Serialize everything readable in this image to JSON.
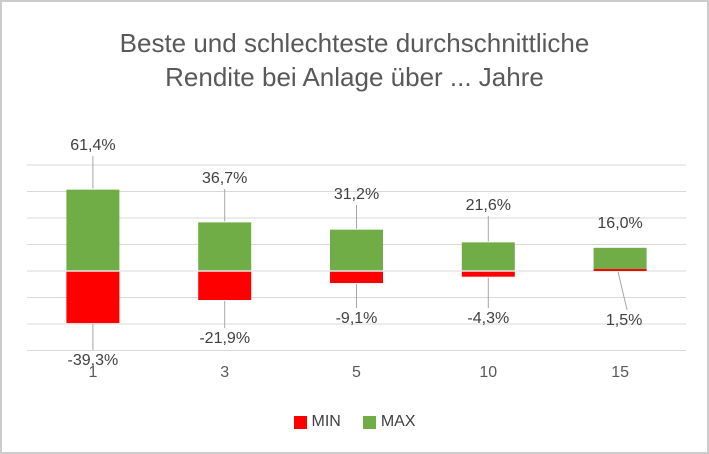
{
  "title": {
    "line1": "Beste und schlechteste durchschnittliche",
    "line2": "Rendite bei Anlage über ... Jahre"
  },
  "legend": {
    "items": [
      {
        "label": "MIN",
        "color": "#ff0000"
      },
      {
        "label": "MAX",
        "color": "#70ad47"
      }
    ]
  },
  "colors": {
    "min_red": "#ff0000",
    "max_green": "#70ad47",
    "gridline": "#d9d9d9",
    "leader": "#a6a6a6",
    "data_label": "#404040",
    "axis_text": "#595959",
    "title_text": "#595959",
    "border": "#cccccc",
    "background": "#ffffff"
  },
  "chart_data": {
    "type": "bar",
    "stacked": true,
    "title": "Beste und schlechteste durchschnittliche Rendite bei Anlage über ... Jahre",
    "categories": [
      "1",
      "3",
      "5",
      "10",
      "15"
    ],
    "series": [
      {
        "name": "MIN",
        "color": "#ff0000",
        "values": [
          -39.3,
          -21.9,
          -9.1,
          -4.3,
          1.5
        ],
        "labels": [
          "-39,3%",
          "-21,9%",
          "-9,1%",
          "-4,3%",
          "1,5%"
        ]
      },
      {
        "name": "MAX",
        "color": "#70ad47",
        "values": [
          61.4,
          36.7,
          31.2,
          21.6,
          16.0
        ],
        "labels": [
          "61,4%",
          "36,7%",
          "31,2%",
          "21,6%",
          "16,0%"
        ]
      }
    ],
    "ylabel": "",
    "xlabel": "",
    "ylim": [
      -60,
      80
    ],
    "grid_step": 20,
    "grid": true,
    "y_axis_labels_visible": false,
    "legend_position": "bottom",
    "data_label_format": "0,0% (German decimal comma)"
  }
}
